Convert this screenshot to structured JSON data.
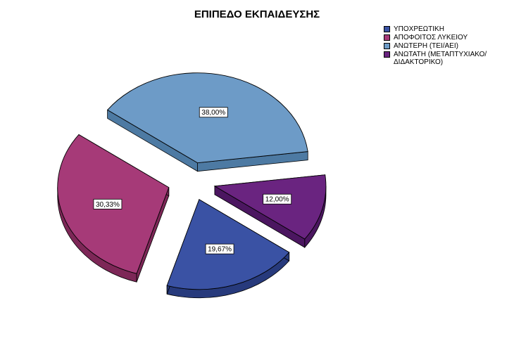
{
  "chart_data": {
    "type": "pie",
    "title": "ΕΠΙΠΕΔΟ ΕΚΠΑΙΔΕΥΣΗΣ",
    "legend_position": "top-right",
    "slices": [
      {
        "label": "ΥΠΟΧΡΕΩΤΙΚΗ",
        "value": 19.67,
        "display": "19,67%",
        "color": "#3a52a4",
        "side_color": "#273a7c"
      },
      {
        "label": "ΑΠΟΦΟΙΤΟΣ ΛΥΚΕΙΟΥ",
        "value": 30.33,
        "display": "30,33%",
        "color": "#a63a78",
        "side_color": "#7d2757"
      },
      {
        "label": "ΑΝΩΤΕΡΗ (ΤΕΙ/ΑΕΙ)",
        "value": 38.0,
        "display": "38,00%",
        "color": "#6d9bc7",
        "side_color": "#4d7aa3"
      },
      {
        "label": "ΑΝΩΤΑΤΗ (ΜΕΤΑΠΤΥΧΙΑΚΟ/ΔΙΔΑΚΤΟΡΙΚΟ)",
        "value": 12.0,
        "display": "12,00%",
        "color": "#6a2480",
        "side_color": "#4b1660"
      }
    ]
  }
}
